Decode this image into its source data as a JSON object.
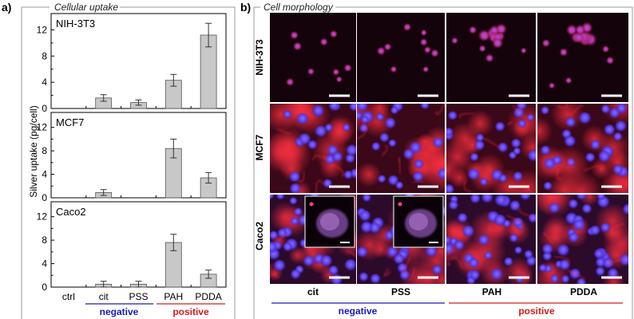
{
  "panel_a": {
    "letter": "a)",
    "title": "Cellular uptake",
    "ylabel": "Silver uptake (pg/cell)",
    "categories": [
      "ctrl",
      "cit",
      "PSS",
      "PAH",
      "PDDA"
    ],
    "group_negative": "negative",
    "group_positive": "positive",
    "negative_color": "#1a1ab8",
    "positive_color": "#d41c1c",
    "bar_color": "#c8c8c8"
  },
  "chart_data": [
    {
      "type": "bar",
      "title": "NIH-3T3",
      "categories": [
        "ctrl",
        "cit",
        "PSS",
        "PAH",
        "PDDA"
      ],
      "values": [
        0,
        1.6,
        0.9,
        4.3,
        11.2
      ],
      "errors": [
        0,
        0.5,
        0.4,
        0.9,
        1.8
      ],
      "ylim": [
        0,
        14
      ],
      "yticks": [
        0,
        4,
        8,
        12
      ]
    },
    {
      "type": "bar",
      "title": "MCF7",
      "categories": [
        "ctrl",
        "cit",
        "PSS",
        "PAH",
        "PDDA"
      ],
      "values": [
        0,
        0.9,
        0,
        8.4,
        3.4
      ],
      "errors": [
        0,
        0.5,
        0,
        1.6,
        0.9
      ],
      "ylim": [
        0,
        14
      ],
      "yticks": [
        0,
        4,
        8,
        12
      ]
    },
    {
      "type": "bar",
      "title": "Caco2",
      "categories": [
        "ctrl",
        "cit",
        "PSS",
        "PAH",
        "PDDA"
      ],
      "values": [
        0,
        0.5,
        0.5,
        7.6,
        2.2
      ],
      "errors": [
        0,
        0.5,
        0.5,
        1.4,
        0.7
      ],
      "ylim": [
        0,
        14
      ],
      "yticks": [
        0,
        4,
        8,
        12
      ]
    }
  ],
  "panel_b": {
    "letter": "b)",
    "title": "Cell morphology",
    "rows": [
      "NIH-3T3",
      "MCF7",
      "Caco2"
    ],
    "columns": [
      "cit",
      "PSS",
      "PAH",
      "PDDA"
    ],
    "group_negative": "negative",
    "group_positive": "positive"
  }
}
